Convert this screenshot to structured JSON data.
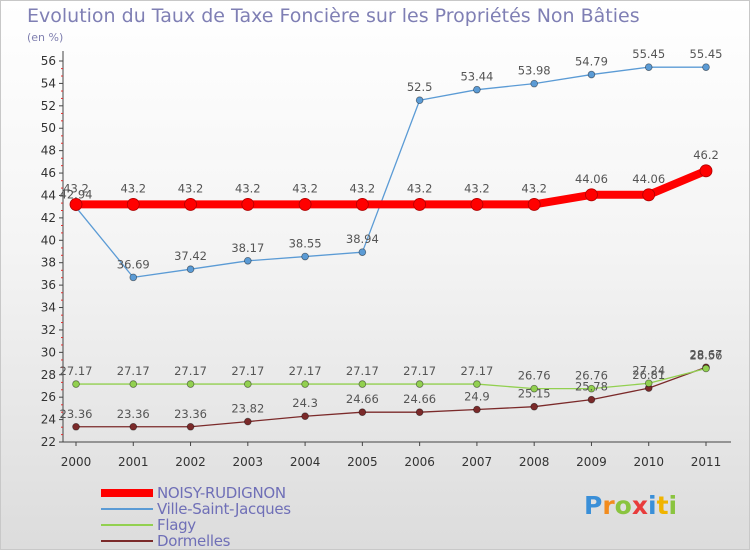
{
  "title": "Evolution du Taux de Taxe Foncière sur les Propriétés Non Bâties",
  "unit_label": "(en %)",
  "logo": {
    "text": "Proxiti",
    "letters": [
      {
        "ch": "P",
        "color": "#3a8fd8"
      },
      {
        "ch": "r",
        "color": "#f28c1e"
      },
      {
        "ch": "o",
        "color": "#8ac43f"
      },
      {
        "ch": "x",
        "color": "#e83c3c"
      },
      {
        "ch": "i",
        "color": "#3a8fd8"
      },
      {
        "ch": "t",
        "color": "#f0b400"
      },
      {
        "ch": "i",
        "color": "#8ac43f"
      }
    ]
  },
  "chart_data": {
    "type": "line",
    "title": "Evolution du Taux de Taxe Foncière sur les Propriétés Non Bâties",
    "ylabel": "(en %)",
    "xlabel": "",
    "ylim": [
      22,
      56
    ],
    "yticks": [
      22,
      24,
      26,
      28,
      30,
      32,
      34,
      36,
      38,
      40,
      42,
      44,
      46,
      48,
      50,
      52,
      54,
      56
    ],
    "categories": [
      "2000",
      "2001",
      "2002",
      "2003",
      "2004",
      "2005",
      "2006",
      "2007",
      "2008",
      "2009",
      "2010",
      "2011"
    ],
    "grid": false,
    "legend_position": "bottom-left",
    "series": [
      {
        "name": "NOISY-RUDIGNON",
        "color": "#ff0000",
        "style": "thick",
        "values": [
          43.2,
          43.2,
          43.2,
          43.2,
          43.2,
          43.2,
          43.2,
          43.2,
          43.2,
          44.06,
          44.06,
          46.2
        ],
        "labels": [
          "43.2",
          "43.2",
          "43.2",
          "43.2",
          "43.2",
          "43.2",
          "43.2",
          "43.2",
          "43.2",
          "44.06",
          "44.06",
          "46.2"
        ]
      },
      {
        "name": "Ville-Saint-Jacques",
        "color": "#5b9bd5",
        "style": "thin",
        "values": [
          42.94,
          36.69,
          37.42,
          38.17,
          38.55,
          38.94,
          52.5,
          53.44,
          53.98,
          54.79,
          55.45,
          55.45
        ],
        "labels": [
          "42.94",
          "36.69",
          "37.42",
          "38.17",
          "38.55",
          "38.94",
          "52.5",
          "53.44",
          "53.98",
          "54.79",
          "55.45",
          "55.45"
        ]
      },
      {
        "name": "Flagy",
        "color": "#92d050",
        "style": "thin",
        "values": [
          27.17,
          27.17,
          27.17,
          27.17,
          27.17,
          27.17,
          27.17,
          27.17,
          26.76,
          26.76,
          27.24,
          28.56
        ],
        "labels": [
          "27.17",
          "27.17",
          "27.17",
          "27.17",
          "27.17",
          "27.17",
          "27.17",
          "27.17",
          "26.76",
          "26.76",
          "27.24",
          "28.56"
        ]
      },
      {
        "name": "Dormelles",
        "color": "#7b2a2a",
        "style": "thin",
        "values": [
          23.36,
          23.36,
          23.36,
          23.82,
          24.3,
          24.66,
          24.66,
          24.9,
          25.15,
          25.78,
          26.81,
          28.67
        ],
        "labels": [
          "23.36",
          "23.36",
          "23.36",
          "23.82",
          "24.3",
          "24.66",
          "24.66",
          "24.9",
          "25.15",
          "25.78",
          "26.81",
          "28.67"
        ]
      }
    ]
  }
}
